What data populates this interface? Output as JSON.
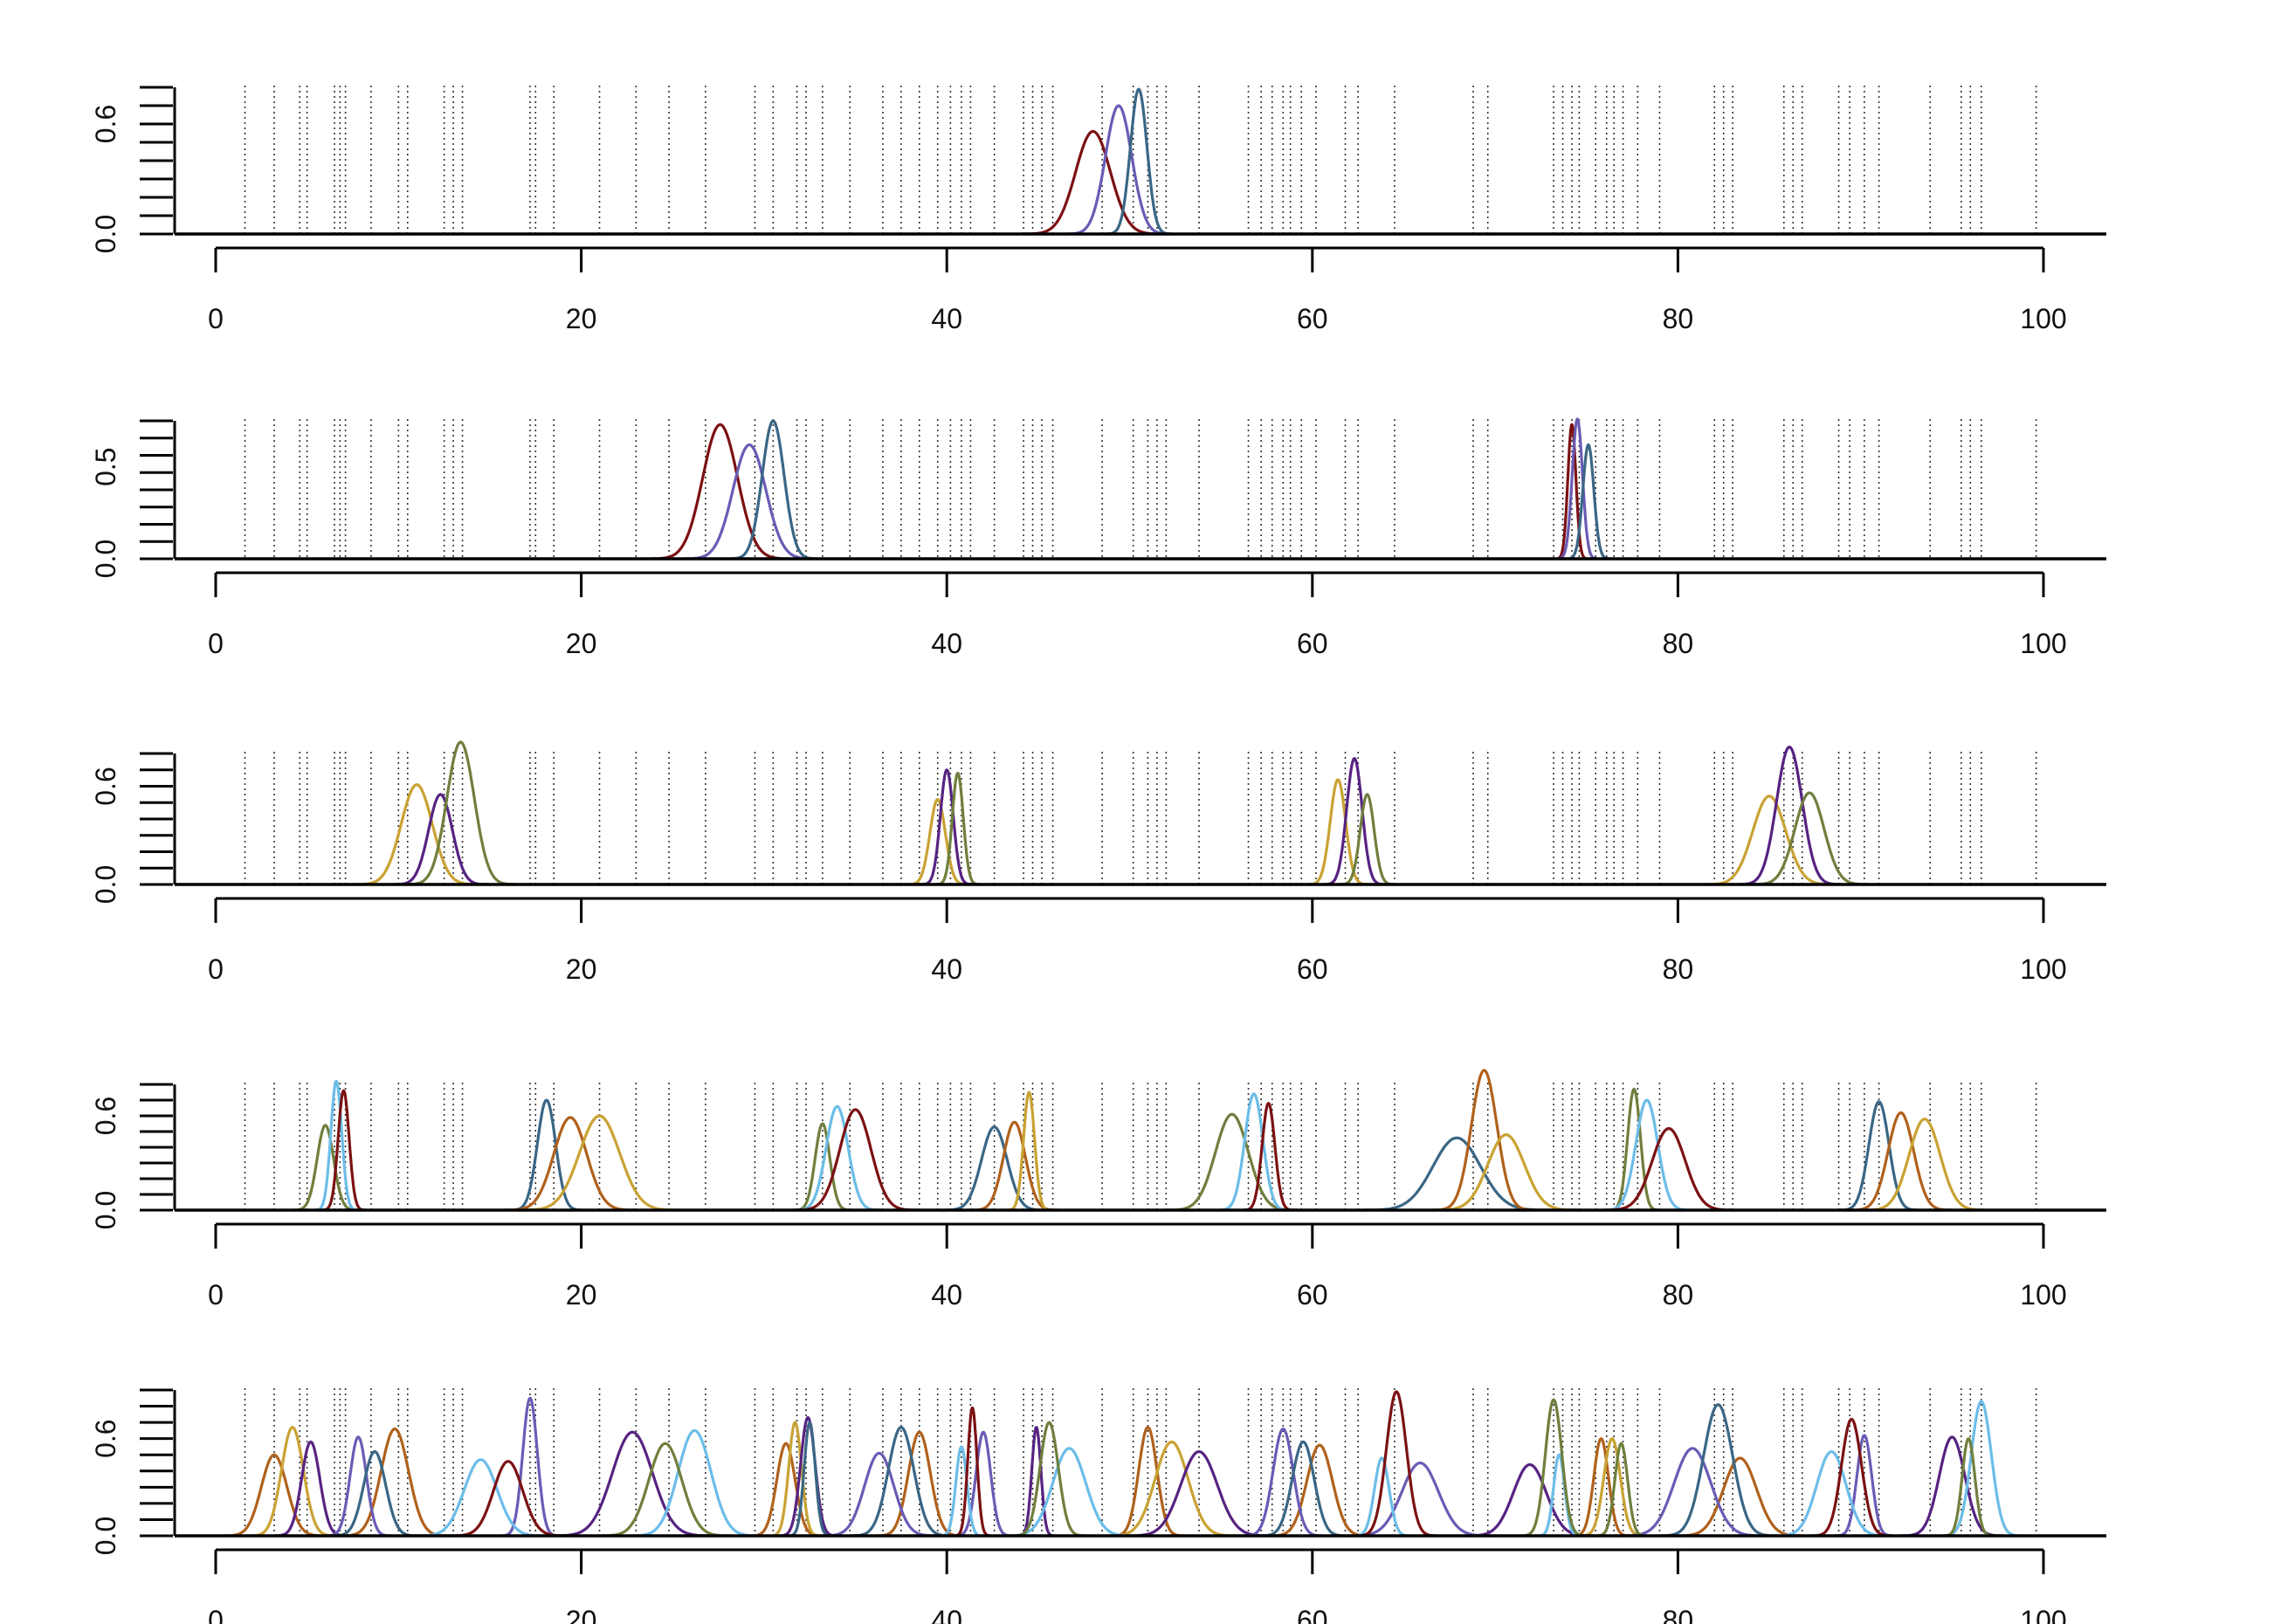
{
  "x_ticks": [
    "0",
    "20",
    "40",
    "60",
    "80",
    "100"
  ],
  "colors": {
    "dark_red": "#7b1113",
    "slate_purple": "#6a5bb5",
    "steel_blue": "#3a6685",
    "goldenrod": "#c9a233",
    "dark_purple": "#572382",
    "olive": "#6f7f3d",
    "rust": "#b0611c",
    "sky_blue": "#6cbde8",
    "rug": "#333333",
    "axis": "#000000"
  },
  "rug_positions": [
    1.6,
    3.2,
    4.6,
    5.0,
    6.5,
    6.8,
    7.1,
    8.5,
    10.0,
    10.5,
    12.5,
    13.0,
    13.5,
    17.2,
    17.5,
    18.5,
    21.0,
    23.0,
    24.8,
    26.8,
    29.5,
    30.5,
    31.8,
    32.3,
    33.2,
    34.7,
    36.5,
    37.5,
    38.5,
    39.5,
    40.2,
    40.8,
    41.3,
    42.6,
    44.2,
    44.7,
    45.2,
    45.8,
    48.5,
    50.2,
    51.0,
    51.5,
    52.0,
    53.8,
    56.5,
    57.2,
    57.8,
    58.4,
    58.8,
    59.4,
    60.2,
    61.8,
    62.5,
    64.5,
    68.8,
    69.6,
    73.2,
    73.7,
    74.2,
    74.6,
    75.5,
    76.1,
    76.5,
    77.0,
    77.8,
    79.0,
    82.0,
    82.5,
    83.0,
    85.8,
    86.3,
    86.8,
    88.8,
    89.4,
    90.2,
    91.0,
    93.8,
    95.5,
    96.0,
    96.6,
    99.6
  ],
  "chart_data": [
    {
      "type": "line",
      "panel": 1,
      "xlim": [
        0,
        100
      ],
      "ylim": [
        0,
        0.8
      ],
      "y_ticks": [
        "0.0",
        "0.6"
      ],
      "x_ticks": [
        0,
        20,
        40,
        60,
        80,
        100
      ],
      "series": [
        {
          "color": "#7b1113",
          "curves": [
            {
              "mu": 48.0,
              "sigma": 0.95,
              "peak": 0.56
            }
          ]
        },
        {
          "color": "#6a5bb5",
          "curves": [
            {
              "mu": 49.4,
              "sigma": 0.72,
              "peak": 0.7
            }
          ]
        },
        {
          "color": "#3a6685",
          "curves": [
            {
              "mu": 50.5,
              "sigma": 0.45,
              "peak": 0.79
            }
          ]
        }
      ]
    },
    {
      "type": "line",
      "panel": 2,
      "xlim": [
        0,
        100
      ],
      "ylim": [
        0,
        0.75
      ],
      "y_ticks": [
        "0.0",
        "0.5"
      ],
      "x_ticks": [
        0,
        20,
        40,
        60,
        80,
        100
      ],
      "series": [
        {
          "color": "#7b1113",
          "curves": [
            {
              "mu": 27.6,
              "sigma": 0.95,
              "peak": 0.73
            },
            {
              "mu": 74.2,
              "sigma": 0.22,
              "peak": 0.73
            }
          ]
        },
        {
          "color": "#6a5bb5",
          "curves": [
            {
              "mu": 29.2,
              "sigma": 0.9,
              "peak": 0.62
            },
            {
              "mu": 74.5,
              "sigma": 0.28,
              "peak": 0.76
            }
          ]
        },
        {
          "color": "#3a6685",
          "curves": [
            {
              "mu": 30.5,
              "sigma": 0.6,
              "peak": 0.75
            },
            {
              "mu": 75.1,
              "sigma": 0.3,
              "peak": 0.62
            }
          ]
        }
      ]
    },
    {
      "type": "line",
      "panel": 3,
      "xlim": [
        0,
        100
      ],
      "ylim": [
        0,
        0.8
      ],
      "y_ticks": [
        "0.0",
        "0.6"
      ],
      "x_ticks": [
        0,
        20,
        40,
        60,
        80,
        100
      ],
      "series": [
        {
          "color": "#c9a233",
          "curves": [
            {
              "mu": 11.0,
              "sigma": 0.85,
              "peak": 0.61
            },
            {
              "mu": 39.5,
              "sigma": 0.42,
              "peak": 0.52
            },
            {
              "mu": 61.4,
              "sigma": 0.42,
              "peak": 0.64
            },
            {
              "mu": 85.0,
              "sigma": 0.9,
              "peak": 0.54
            }
          ]
        },
        {
          "color": "#572382",
          "curves": [
            {
              "mu": 12.3,
              "sigma": 0.65,
              "peak": 0.55
            },
            {
              "mu": 40.0,
              "sigma": 0.35,
              "peak": 0.7
            },
            {
              "mu": 62.3,
              "sigma": 0.42,
              "peak": 0.77
            },
            {
              "mu": 86.1,
              "sigma": 0.7,
              "peak": 0.84
            }
          ]
        },
        {
          "color": "#6f7f3d",
          "curves": [
            {
              "mu": 13.4,
              "sigma": 0.75,
              "peak": 0.87
            },
            {
              "mu": 40.6,
              "sigma": 0.3,
              "peak": 0.68
            },
            {
              "mu": 63.0,
              "sigma": 0.38,
              "peak": 0.55
            },
            {
              "mu": 87.2,
              "sigma": 0.8,
              "peak": 0.56
            }
          ]
        }
      ]
    },
    {
      "type": "line",
      "panel": 4,
      "xlim": [
        0,
        100
      ],
      "ylim": [
        0,
        0.8
      ],
      "y_ticks": [
        "0.0",
        "0.6"
      ],
      "x_ticks": [
        0,
        20,
        40,
        60,
        80,
        100
      ],
      "series": [
        {
          "color": "#6f7f3d",
          "curves": [
            {
              "mu": 6.0,
              "sigma": 0.45,
              "peak": 0.54
            },
            {
              "mu": 33.2,
              "sigma": 0.4,
              "peak": 0.55
            },
            {
              "mu": 55.6,
              "sigma": 0.9,
              "peak": 0.61
            },
            {
              "mu": 77.6,
              "sigma": 0.35,
              "peak": 0.77
            }
          ]
        },
        {
          "color": "#6cbde8",
          "curves": [
            {
              "mu": 6.6,
              "sigma": 0.3,
              "peak": 0.82
            },
            {
              "mu": 34.0,
              "sigma": 0.6,
              "peak": 0.66
            },
            {
              "mu": 56.8,
              "sigma": 0.5,
              "peak": 0.74
            },
            {
              "mu": 78.3,
              "sigma": 0.6,
              "peak": 0.7
            }
          ]
        },
        {
          "color": "#7b1113",
          "curves": [
            {
              "mu": 7.0,
              "sigma": 0.3,
              "peak": 0.76
            },
            {
              "mu": 35.0,
              "sigma": 0.85,
              "peak": 0.64
            },
            {
              "mu": 57.6,
              "sigma": 0.35,
              "peak": 0.68
            },
            {
              "mu": 79.5,
              "sigma": 0.9,
              "peak": 0.52
            }
          ]
        },
        {
          "color": "#3a6685",
          "curves": [
            {
              "mu": 18.1,
              "sigma": 0.5,
              "peak": 0.7
            },
            {
              "mu": 42.6,
              "sigma": 0.7,
              "peak": 0.53
            },
            {
              "mu": 67.9,
              "sigma": 1.3,
              "peak": 0.46
            },
            {
              "mu": 91.0,
              "sigma": 0.55,
              "peak": 0.69
            }
          ]
        },
        {
          "color": "#b0611c",
          "curves": [
            {
              "mu": 19.4,
              "sigma": 0.9,
              "peak": 0.59
            },
            {
              "mu": 43.7,
              "sigma": 0.6,
              "peak": 0.56
            },
            {
              "mu": 69.4,
              "sigma": 0.7,
              "peak": 0.89
            },
            {
              "mu": 92.2,
              "sigma": 0.7,
              "peak": 0.62
            }
          ]
        },
        {
          "color": "#c9a233",
          "curves": [
            {
              "mu": 21.0,
              "sigma": 1.1,
              "peak": 0.6
            },
            {
              "mu": 44.5,
              "sigma": 0.3,
              "peak": 0.75
            },
            {
              "mu": 70.6,
              "sigma": 1.0,
              "peak": 0.48
            },
            {
              "mu": 93.5,
              "sigma": 0.85,
              "peak": 0.58
            }
          ]
        }
      ]
    },
    {
      "type": "line",
      "panel": 5,
      "xlim": [
        0,
        100
      ],
      "ylim": [
        0,
        0.9
      ],
      "y_ticks": [
        "0.0",
        "0.6"
      ],
      "x_ticks": [
        0,
        20,
        40,
        60,
        80,
        100
      ],
      "series": [
        {
          "color": "#b0611c",
          "curves": [
            {
              "mu": 3.2,
              "sigma": 0.7,
              "peak": 0.5
            },
            {
              "mu": 9.8,
              "sigma": 0.75,
              "peak": 0.66
            },
            {
              "mu": 31.2,
              "sigma": 0.5,
              "peak": 0.57
            },
            {
              "mu": 38.5,
              "sigma": 0.6,
              "peak": 0.64
            },
            {
              "mu": 51.0,
              "sigma": 0.5,
              "peak": 0.67
            },
            {
              "mu": 60.4,
              "sigma": 0.7,
              "peak": 0.56
            },
            {
              "mu": 75.8,
              "sigma": 0.4,
              "peak": 0.6
            },
            {
              "mu": 83.4,
              "sigma": 0.9,
              "peak": 0.48
            }
          ]
        },
        {
          "color": "#c9a233",
          "curves": [
            {
              "mu": 4.2,
              "sigma": 0.6,
              "peak": 0.67
            },
            {
              "mu": 31.7,
              "sigma": 0.35,
              "peak": 0.7
            },
            {
              "mu": 52.3,
              "sigma": 0.9,
              "peak": 0.58
            },
            {
              "mu": 76.4,
              "sigma": 0.45,
              "peak": 0.6
            }
          ]
        },
        {
          "color": "#572382",
          "curves": [
            {
              "mu": 5.2,
              "sigma": 0.5,
              "peak": 0.58
            },
            {
              "mu": 22.8,
              "sigma": 1.1,
              "peak": 0.64
            },
            {
              "mu": 32.4,
              "sigma": 0.4,
              "peak": 0.73
            },
            {
              "mu": 44.9,
              "sigma": 0.25,
              "peak": 0.67
            },
            {
              "mu": 53.8,
              "sigma": 1.0,
              "peak": 0.52
            },
            {
              "mu": 71.9,
              "sigma": 0.9,
              "peak": 0.44
            },
            {
              "mu": 95.0,
              "sigma": 0.7,
              "peak": 0.61
            }
          ]
        },
        {
          "color": "#6a5bb5",
          "curves": [
            {
              "mu": 7.8,
              "sigma": 0.45,
              "peak": 0.61
            },
            {
              "mu": 17.2,
              "sigma": 0.4,
              "peak": 0.85
            },
            {
              "mu": 36.3,
              "sigma": 0.8,
              "peak": 0.51
            },
            {
              "mu": 42.0,
              "sigma": 0.4,
              "peak": 0.64
            },
            {
              "mu": 58.4,
              "sigma": 0.55,
              "peak": 0.66
            },
            {
              "mu": 65.9,
              "sigma": 1.0,
              "peak": 0.45
            },
            {
              "mu": 80.8,
              "sigma": 1.0,
              "peak": 0.54
            },
            {
              "mu": 90.2,
              "sigma": 0.4,
              "peak": 0.62
            }
          ]
        },
        {
          "color": "#3a6685",
          "curves": [
            {
              "mu": 8.7,
              "sigma": 0.6,
              "peak": 0.52
            },
            {
              "mu": 32.5,
              "sigma": 0.3,
              "peak": 0.7
            },
            {
              "mu": 37.5,
              "sigma": 0.7,
              "peak": 0.67
            },
            {
              "mu": 59.5,
              "sigma": 0.6,
              "peak": 0.58
            },
            {
              "mu": 82.2,
              "sigma": 0.8,
              "peak": 0.81
            }
          ]
        },
        {
          "color": "#6cbde8",
          "curves": [
            {
              "mu": 14.5,
              "sigma": 0.9,
              "peak": 0.47
            },
            {
              "mu": 26.2,
              "sigma": 0.9,
              "peak": 0.65
            },
            {
              "mu": 40.8,
              "sigma": 0.3,
              "peak": 0.55
            },
            {
              "mu": 46.7,
              "sigma": 0.9,
              "peak": 0.54
            },
            {
              "mu": 63.8,
              "sigma": 0.4,
              "peak": 0.48
            },
            {
              "mu": 73.5,
              "sigma": 0.3,
              "peak": 0.5
            },
            {
              "mu": 88.4,
              "sigma": 0.8,
              "peak": 0.52
            },
            {
              "mu": 96.6,
              "sigma": 0.55,
              "peak": 0.83
            }
          ]
        },
        {
          "color": "#7b1113",
          "curves": [
            {
              "mu": 16.0,
              "sigma": 0.8,
              "peak": 0.46
            },
            {
              "mu": 41.4,
              "sigma": 0.25,
              "peak": 0.79
            },
            {
              "mu": 64.6,
              "sigma": 0.55,
              "peak": 0.89
            },
            {
              "mu": 89.5,
              "sigma": 0.55,
              "peak": 0.72
            }
          ]
        },
        {
          "color": "#6f7f3d",
          "curves": [
            {
              "mu": 24.6,
              "sigma": 0.9,
              "peak": 0.57
            },
            {
              "mu": 45.6,
              "sigma": 0.5,
              "peak": 0.7
            },
            {
              "mu": 73.2,
              "sigma": 0.45,
              "peak": 0.84
            },
            {
              "mu": 76.9,
              "sigma": 0.35,
              "peak": 0.57
            },
            {
              "mu": 95.9,
              "sigma": 0.35,
              "peak": 0.6
            }
          ]
        }
      ]
    }
  ]
}
